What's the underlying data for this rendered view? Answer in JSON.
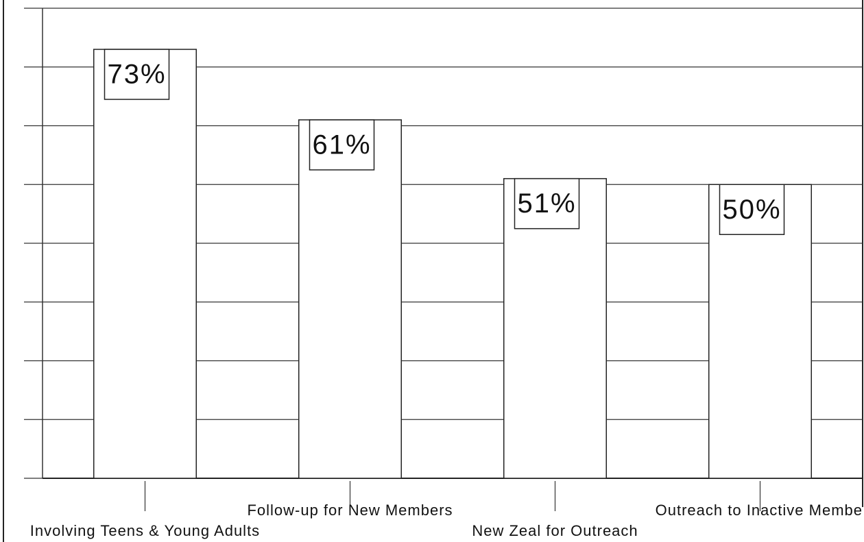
{
  "chart_data": {
    "type": "bar",
    "categories": [
      "Involving Teens & Young Adults",
      "Follow-up for New Members",
      "New Zeal for Outreach",
      "Outreach to Inactive Membe"
    ],
    "values": [
      73,
      61,
      51,
      50
    ],
    "value_labels": [
      "73%",
      "61%",
      "51%",
      "50%"
    ],
    "color": "#ffffff",
    "ylim": [
      0,
      80
    ],
    "yticks": [
      0,
      10,
      20,
      30,
      40,
      50,
      60,
      70,
      80
    ],
    "grid": true
  }
}
